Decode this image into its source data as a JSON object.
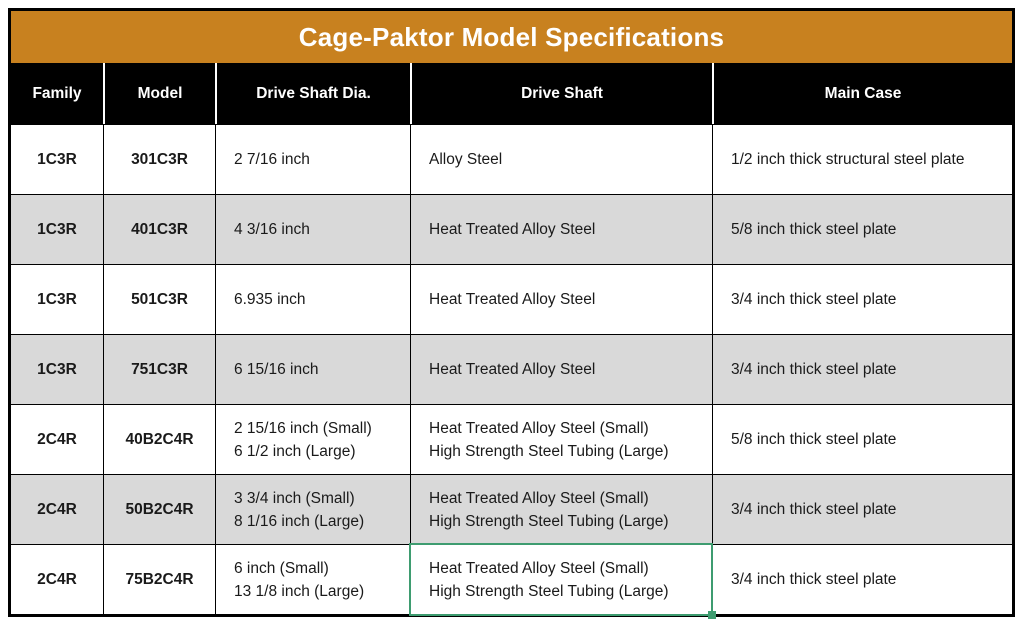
{
  "title": "Cage-Paktor Model Specifications",
  "columns": [
    "Family",
    "Model",
    "Drive Shaft Dia.",
    "Drive Shaft",
    "Main Case"
  ],
  "rows": [
    {
      "family": "1C3R",
      "model": "301C3R",
      "dia": "2 7/16 inch",
      "shaft": "Alloy Steel",
      "case": "1/2 inch thick structural steel plate"
    },
    {
      "family": "1C3R",
      "model": "401C3R",
      "dia": "4 3/16 inch",
      "shaft": "Heat Treated Alloy Steel",
      "case": "5/8 inch thick steel plate"
    },
    {
      "family": "1C3R",
      "model": "501C3R",
      "dia": "6.935 inch",
      "shaft": "Heat Treated Alloy Steel",
      "case": "3/4 inch thick steel plate"
    },
    {
      "family": "1C3R",
      "model": "751C3R",
      "dia": "6 15/16 inch",
      "shaft": "Heat Treated Alloy Steel",
      "case": "3/4 inch thick steel plate"
    },
    {
      "family": "2C4R",
      "model": "40B2C4R",
      "dia": "2 15/16 inch (Small)\n6 1/2 inch (Large)",
      "shaft": "Heat Treated Alloy Steel (Small)\nHigh Strength Steel Tubing (Large)",
      "case": "5/8 inch thick steel plate"
    },
    {
      "family": "2C4R",
      "model": "50B2C4R",
      "dia": "3 3/4 inch (Small)\n8 1/16 inch (Large)",
      "shaft": "Heat Treated Alloy Steel (Small)\nHigh Strength Steel Tubing (Large)",
      "case": "3/4 inch thick steel plate"
    },
    {
      "family": "2C4R",
      "model": "75B2C4R",
      "dia": "6 inch (Small)\n13 1/8 inch (Large)",
      "shaft": "Heat Treated Alloy Steel (Small)\nHigh Strength Steel Tubing (Large)",
      "case": "3/4 inch thick steel plate"
    }
  ],
  "selection": {
    "row_index": 6,
    "column": "shaft"
  },
  "colors": {
    "title_bar": "#C8811F",
    "header_bg": "#000000",
    "header_text": "#FFFFFF",
    "alt_row_bg": "#D9D9D9",
    "selection_green": "#3E9C70",
    "border": "#000000"
  }
}
